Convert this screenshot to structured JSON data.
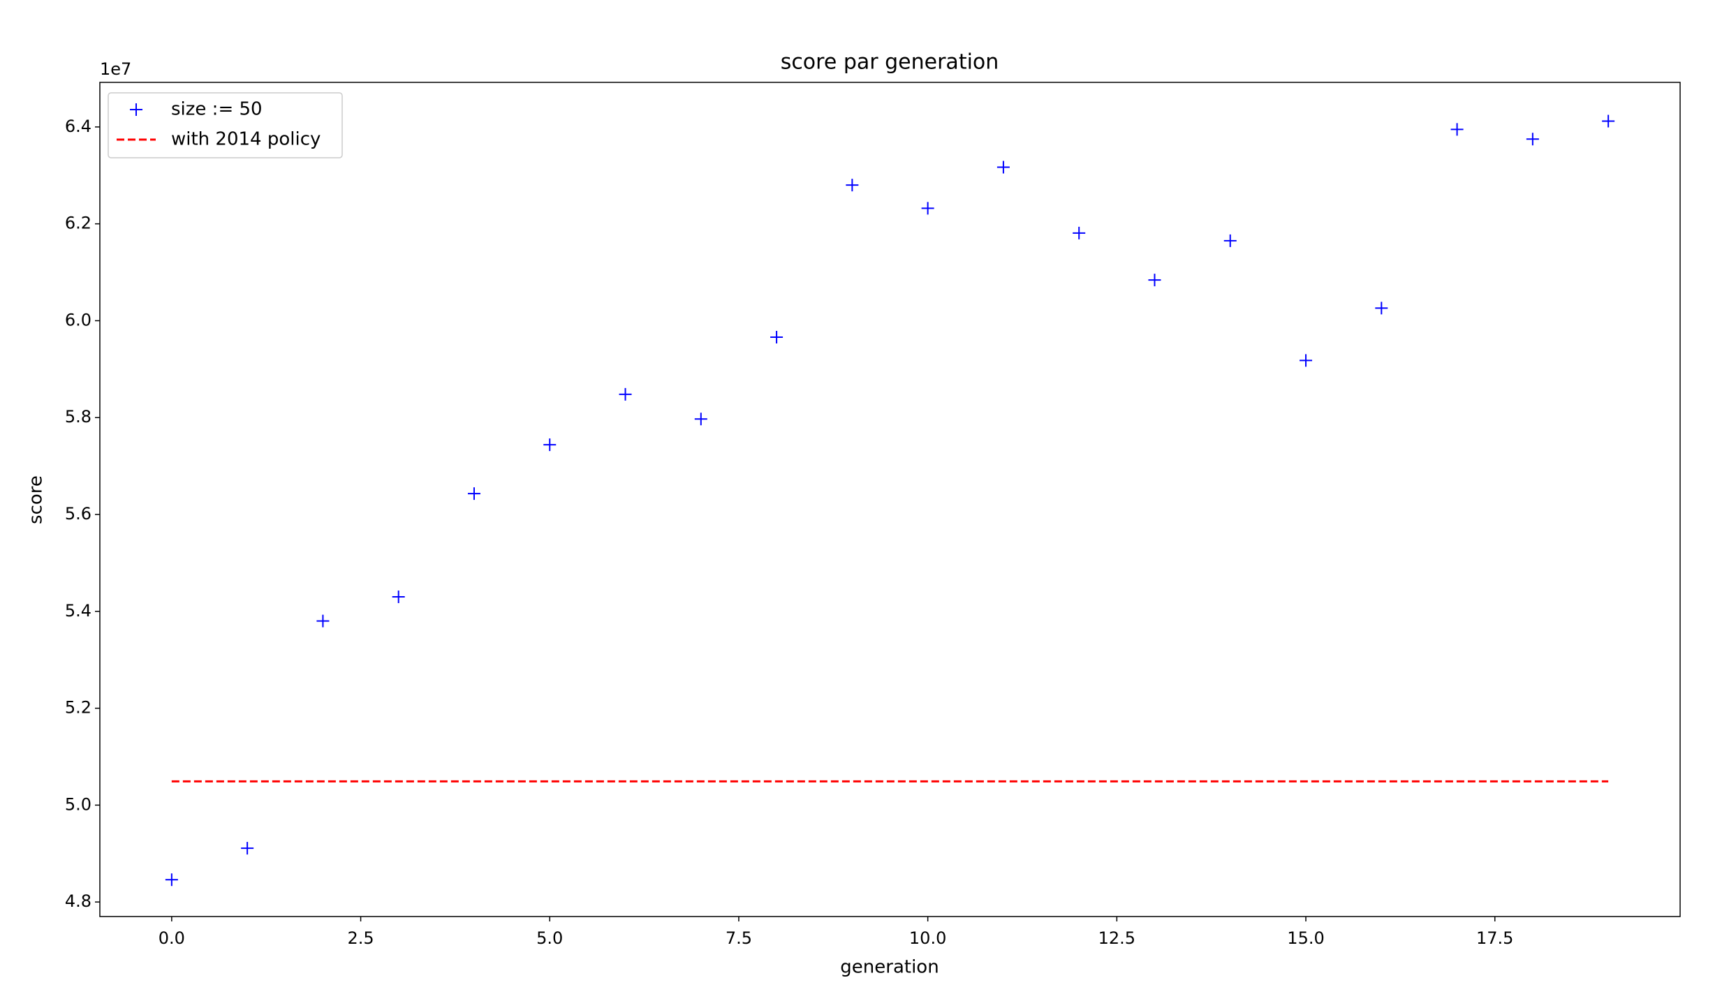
{
  "chart_data": {
    "type": "scatter",
    "title": "score par generation",
    "x_label": "generation",
    "y_label": "score",
    "y_offset_label": "1e7",
    "series": [
      {
        "name": "size := 50",
        "color": "#0000ff",
        "marker": "+",
        "x": [
          0,
          1,
          2,
          3,
          4,
          5,
          6,
          7,
          8,
          9,
          10,
          11,
          12,
          13,
          14,
          15,
          16,
          17,
          18,
          19
        ],
        "values": [
          4.846,
          4.911,
          5.38,
          5.43,
          5.643,
          5.744,
          5.848,
          5.797,
          5.966,
          6.28,
          6.232,
          6.317,
          6.181,
          6.084,
          6.165,
          5.918,
          6.026,
          6.395,
          6.375,
          6.412
        ]
      },
      {
        "name": "with 2014 policy",
        "color": "#ff0000",
        "linestyle": "dashed",
        "x": [
          0,
          19
        ],
        "values": [
          5.049,
          5.049
        ]
      }
    ],
    "xlim": [
      -0.95,
      19.95
    ],
    "xticks": [
      {
        "value": 0,
        "label": "0.0"
      },
      2.5,
      {
        "value": 5,
        "label": "5.0"
      },
      7.5,
      {
        "value": 10,
        "label": "10.0"
      },
      12.5,
      {
        "value": 15,
        "label": "15.0"
      },
      17.5
    ],
    "ylim": [
      4.77,
      6.492
    ],
    "yticks": [
      4.8,
      {
        "value": 5,
        "label": "5.0"
      },
      5.2,
      5.4,
      5.6,
      5.8,
      {
        "value": 6,
        "label": "6.0"
      },
      6.2,
      6.4
    ],
    "legend": "upper left"
  }
}
